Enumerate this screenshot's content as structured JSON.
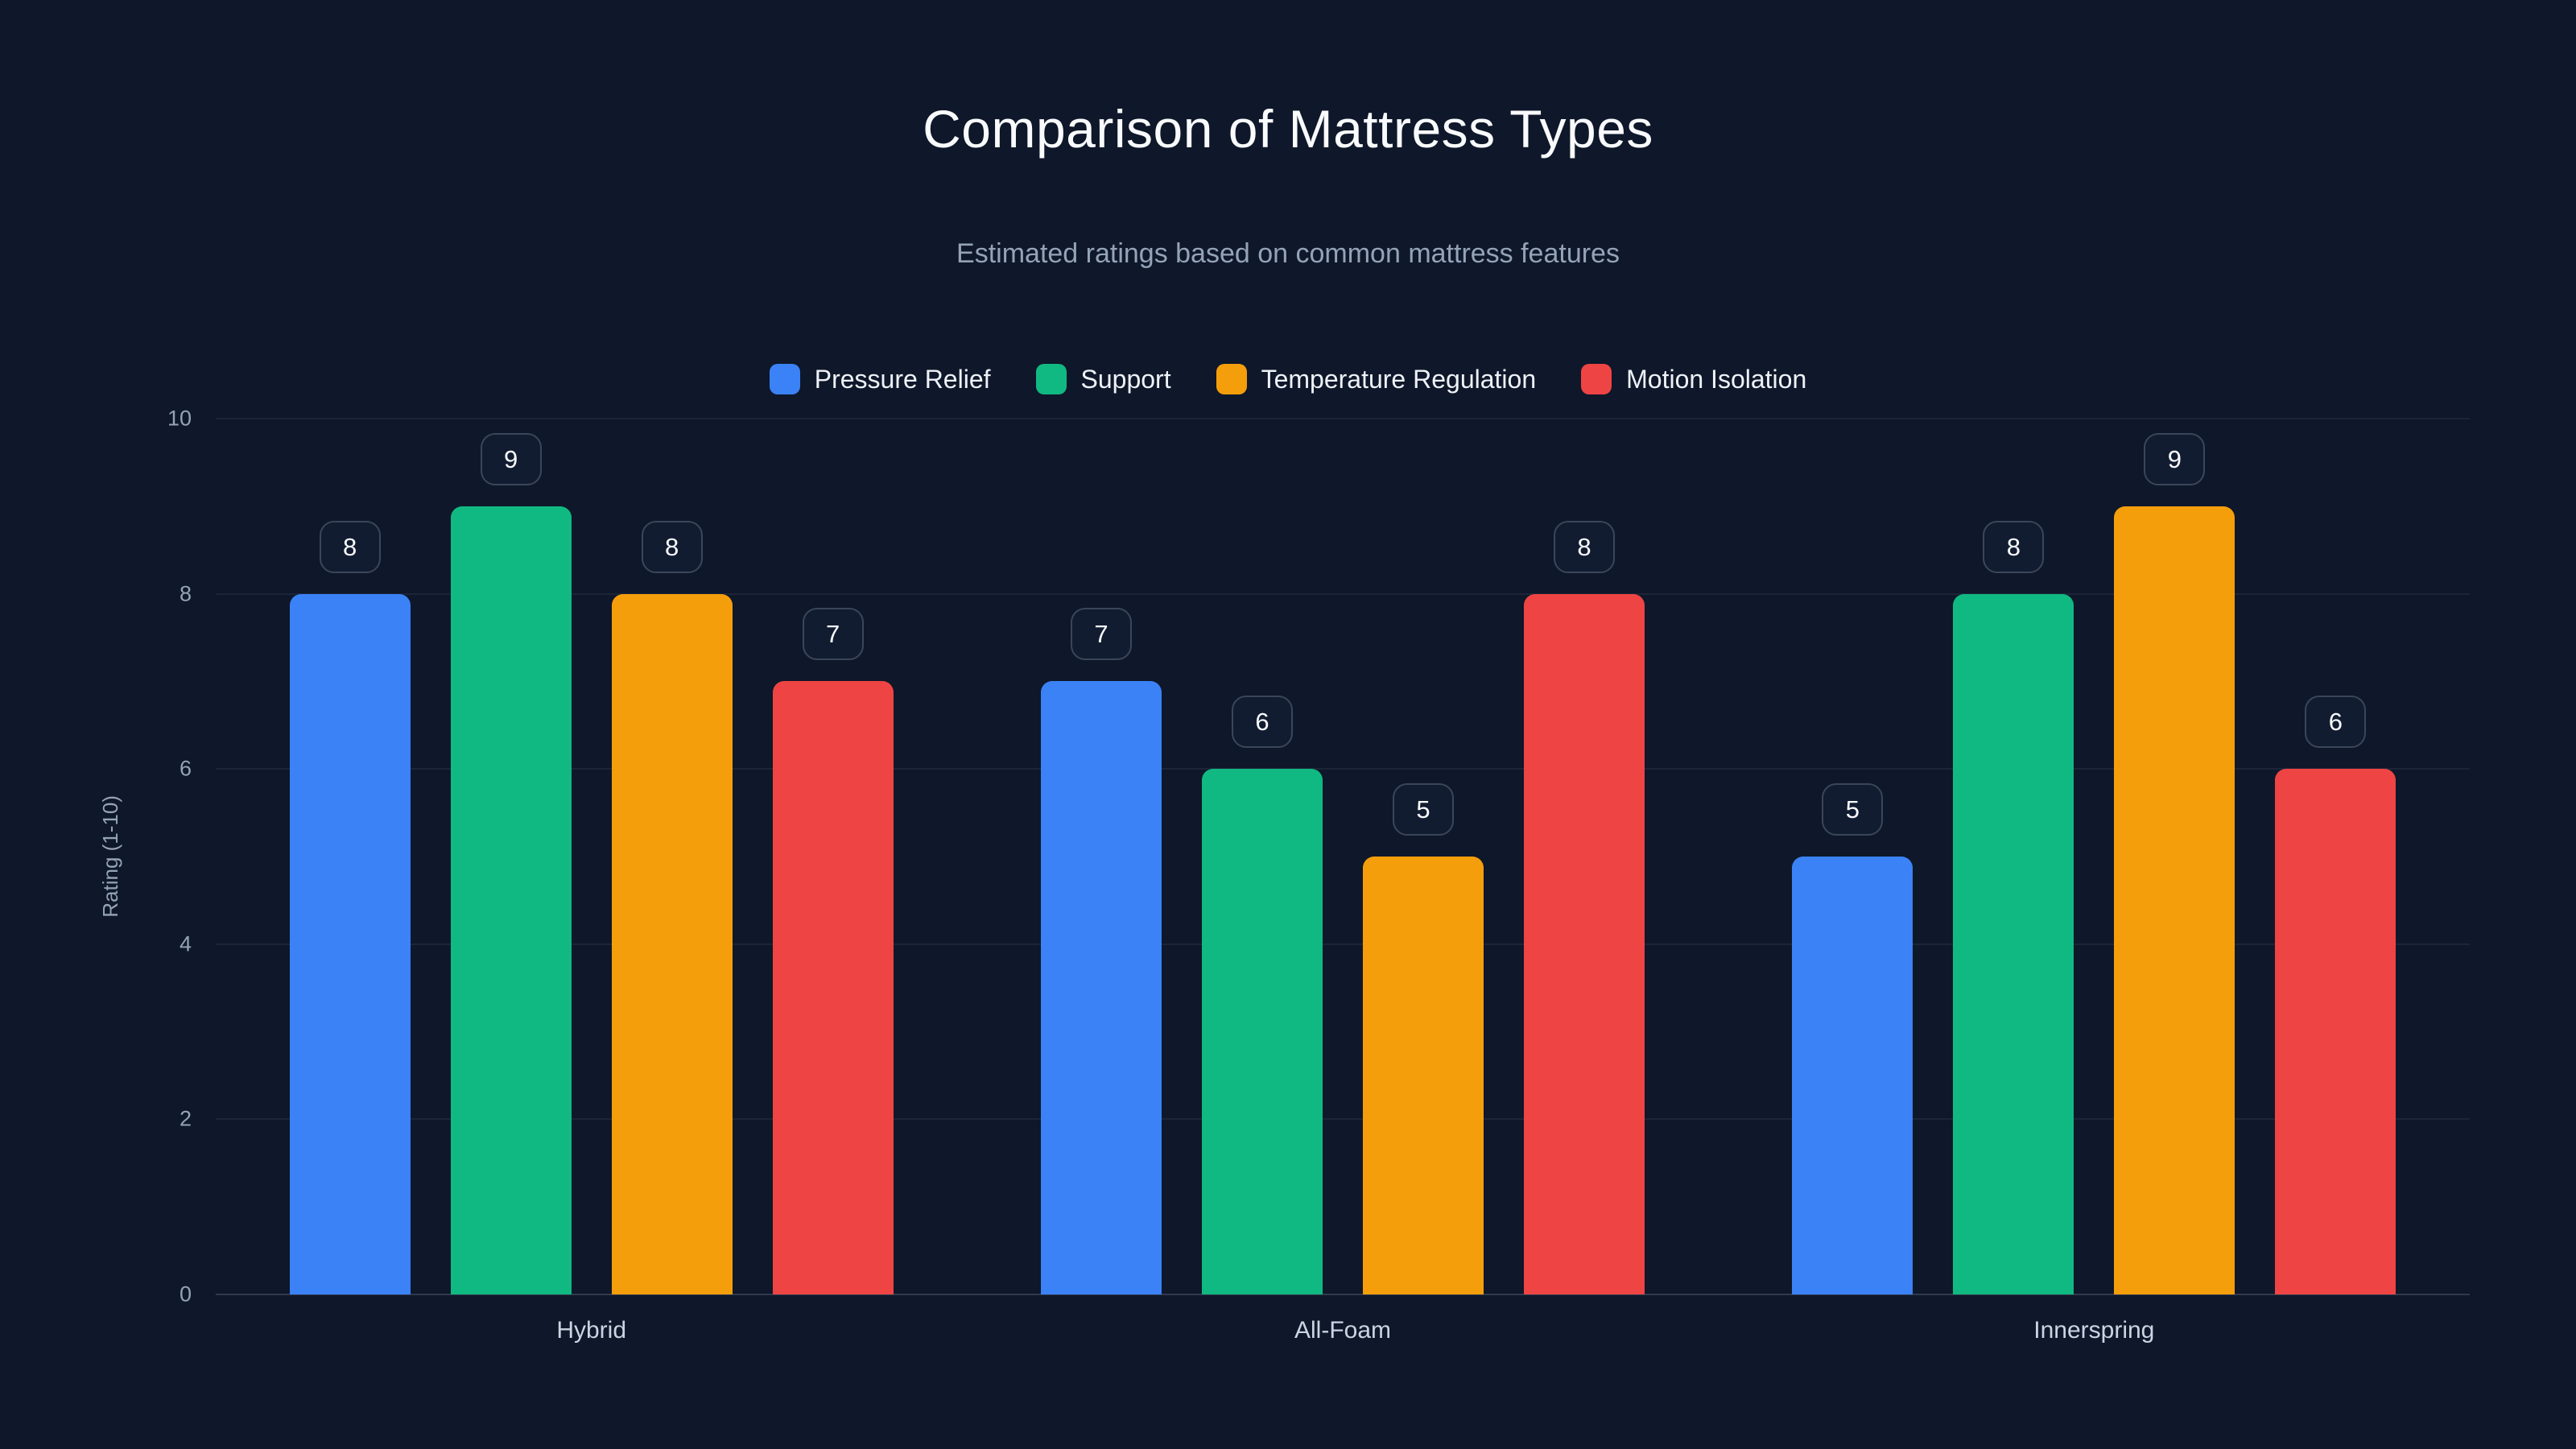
{
  "page": {
    "title": "Comparison of Mattress Types",
    "subtitle": "Estimated ratings based on common mattress features"
  },
  "chart_data": {
    "type": "bar",
    "title": "Comparison of Mattress Types",
    "subtitle": "Estimated ratings based on common mattress features",
    "categories": [
      "Hybrid",
      "All-Foam",
      "Innerspring"
    ],
    "series": [
      {
        "name": "Pressure Relief",
        "color": "#3b82f6",
        "values": [
          8,
          7,
          5
        ]
      },
      {
        "name": "Support",
        "color": "#10b981",
        "values": [
          9,
          6,
          8
        ]
      },
      {
        "name": "Temperature Regulation",
        "color": "#f59e0b",
        "values": [
          8,
          5,
          9
        ]
      },
      {
        "name": "Motion Isolation",
        "color": "#ef4444",
        "values": [
          7,
          8,
          6
        ]
      }
    ],
    "xlabel": "",
    "ylabel": "Rating (1-10)",
    "ylim": [
      0,
      10
    ],
    "yticks": [
      0,
      2,
      4,
      6,
      8,
      10
    ],
    "grid": true,
    "legend_position": "top",
    "value_labels": true
  },
  "colors": {
    "background": "#0f172a",
    "text_primary": "#f8fafc",
    "text_secondary": "#94a3b8",
    "gridline": "rgba(148,163,184,0.10)",
    "value_label_bg": "#121c31",
    "value_label_border": "#3a4659"
  }
}
